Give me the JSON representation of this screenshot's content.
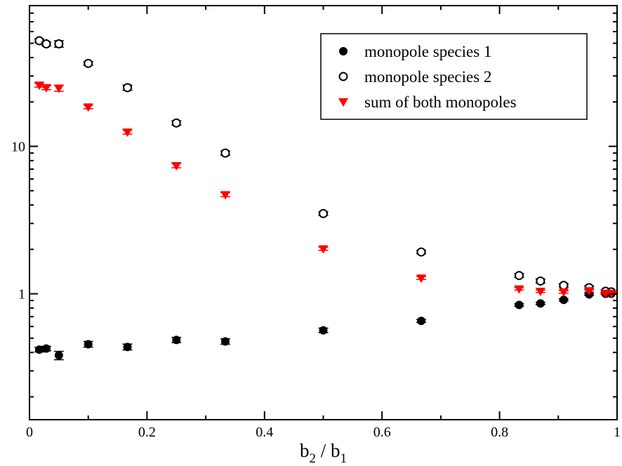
{
  "chart_data": {
    "type": "scatter",
    "title": "",
    "xlabel": {
      "main1": "b",
      "sub1": "2",
      "sep": " / ",
      "main2": "b",
      "sub2": "1"
    },
    "ylabel": "",
    "xlim": [
      0,
      1
    ],
    "ylim": [
      0.14,
      90
    ],
    "yscale": "log",
    "grid": false,
    "legend_position": "top-right",
    "x_ticks": [
      {
        "value": 0,
        "label": "0"
      },
      {
        "value": 0.2,
        "label": "0.2"
      },
      {
        "value": 0.4,
        "label": "0.4"
      },
      {
        "value": 0.6,
        "label": "0.6"
      },
      {
        "value": 0.8,
        "label": "0.8"
      },
      {
        "value": 1,
        "label": "1"
      }
    ],
    "y_ticks": [
      {
        "value": 1,
        "label": "1"
      },
      {
        "value": 10,
        "label": "10"
      }
    ],
    "series": [
      {
        "name": "monopole species 1",
        "marker": "filled-circle",
        "color": "#000000",
        "points": [
          {
            "x": 0.0167,
            "y": 0.418,
            "err": 0.015
          },
          {
            "x": 0.0286,
            "y": 0.425,
            "err": 0.015
          },
          {
            "x": 0.05,
            "y": 0.382,
            "err": 0.025
          },
          {
            "x": 0.1,
            "y": 0.455,
            "err": 0.02
          },
          {
            "x": 0.1667,
            "y": 0.436,
            "err": 0.02
          },
          {
            "x": 0.25,
            "y": 0.486,
            "err": 0.02
          },
          {
            "x": 0.3333,
            "y": 0.475,
            "err": 0.02
          },
          {
            "x": 0.5,
            "y": 0.565,
            "err": 0.02
          },
          {
            "x": 0.6667,
            "y": 0.655,
            "err": 0.015
          },
          {
            "x": 0.8333,
            "y": 0.84,
            "err": 0.015
          },
          {
            "x": 0.8696,
            "y": 0.86,
            "err": 0.015
          },
          {
            "x": 0.9091,
            "y": 0.91,
            "err": 0.015
          },
          {
            "x": 0.9524,
            "y": 0.99,
            "err": 0.015
          },
          {
            "x": 0.9804,
            "y": 1.0,
            "err": 0.01
          },
          {
            "x": 0.9901,
            "y": 1.0,
            "err": 0.01
          }
        ]
      },
      {
        "name": "monopole species 2",
        "marker": "open-circle",
        "color": "#000000",
        "points": [
          {
            "x": 0.0167,
            "y": 52.0,
            "err": 1.5
          },
          {
            "x": 0.0286,
            "y": 49.5,
            "err": 1.5
          },
          {
            "x": 0.05,
            "y": 49.5,
            "err": 2.5
          },
          {
            "x": 0.1,
            "y": 36.5,
            "err": 1.0
          },
          {
            "x": 0.1667,
            "y": 25.0,
            "err": 1.0
          },
          {
            "x": 0.25,
            "y": 14.4,
            "err": 0.5
          },
          {
            "x": 0.3333,
            "y": 9.0,
            "err": 0.3
          },
          {
            "x": 0.5,
            "y": 3.5,
            "err": 0.1
          },
          {
            "x": 0.6667,
            "y": 1.92,
            "err": 0.05
          },
          {
            "x": 0.8333,
            "y": 1.33,
            "err": 0.04
          },
          {
            "x": 0.8696,
            "y": 1.22,
            "err": 0.04
          },
          {
            "x": 0.9091,
            "y": 1.14,
            "err": 0.03
          },
          {
            "x": 0.9524,
            "y": 1.1,
            "err": 0.03
          },
          {
            "x": 0.9804,
            "y": 1.04,
            "err": 0.02
          },
          {
            "x": 0.9901,
            "y": 1.03,
            "err": 0.02
          }
        ]
      },
      {
        "name": "sum of both monopoles",
        "marker": "filled-triangle-down",
        "color": "#ff0000",
        "points": [
          {
            "x": 0.0167,
            "y": 26.0,
            "err": 0.8
          },
          {
            "x": 0.0286,
            "y": 25.0,
            "err": 0.8
          },
          {
            "x": 0.05,
            "y": 24.8,
            "err": 1.2
          },
          {
            "x": 0.1,
            "y": 18.5,
            "err": 0.5
          },
          {
            "x": 0.1667,
            "y": 12.5,
            "err": 0.4
          },
          {
            "x": 0.25,
            "y": 7.4,
            "err": 0.25
          },
          {
            "x": 0.3333,
            "y": 4.7,
            "err": 0.15
          },
          {
            "x": 0.5,
            "y": 2.02,
            "err": 0.05
          },
          {
            "x": 0.6667,
            "y": 1.28,
            "err": 0.03
          },
          {
            "x": 0.8333,
            "y": 1.08,
            "err": 0.02
          },
          {
            "x": 0.8696,
            "y": 1.04,
            "err": 0.02
          },
          {
            "x": 0.9091,
            "y": 1.03,
            "err": 0.02
          },
          {
            "x": 0.9524,
            "y": 1.05,
            "err": 0.02
          },
          {
            "x": 0.9804,
            "y": 1.01,
            "err": 0.01
          },
          {
            "x": 0.9901,
            "y": 1.01,
            "err": 0.01
          }
        ]
      }
    ]
  }
}
